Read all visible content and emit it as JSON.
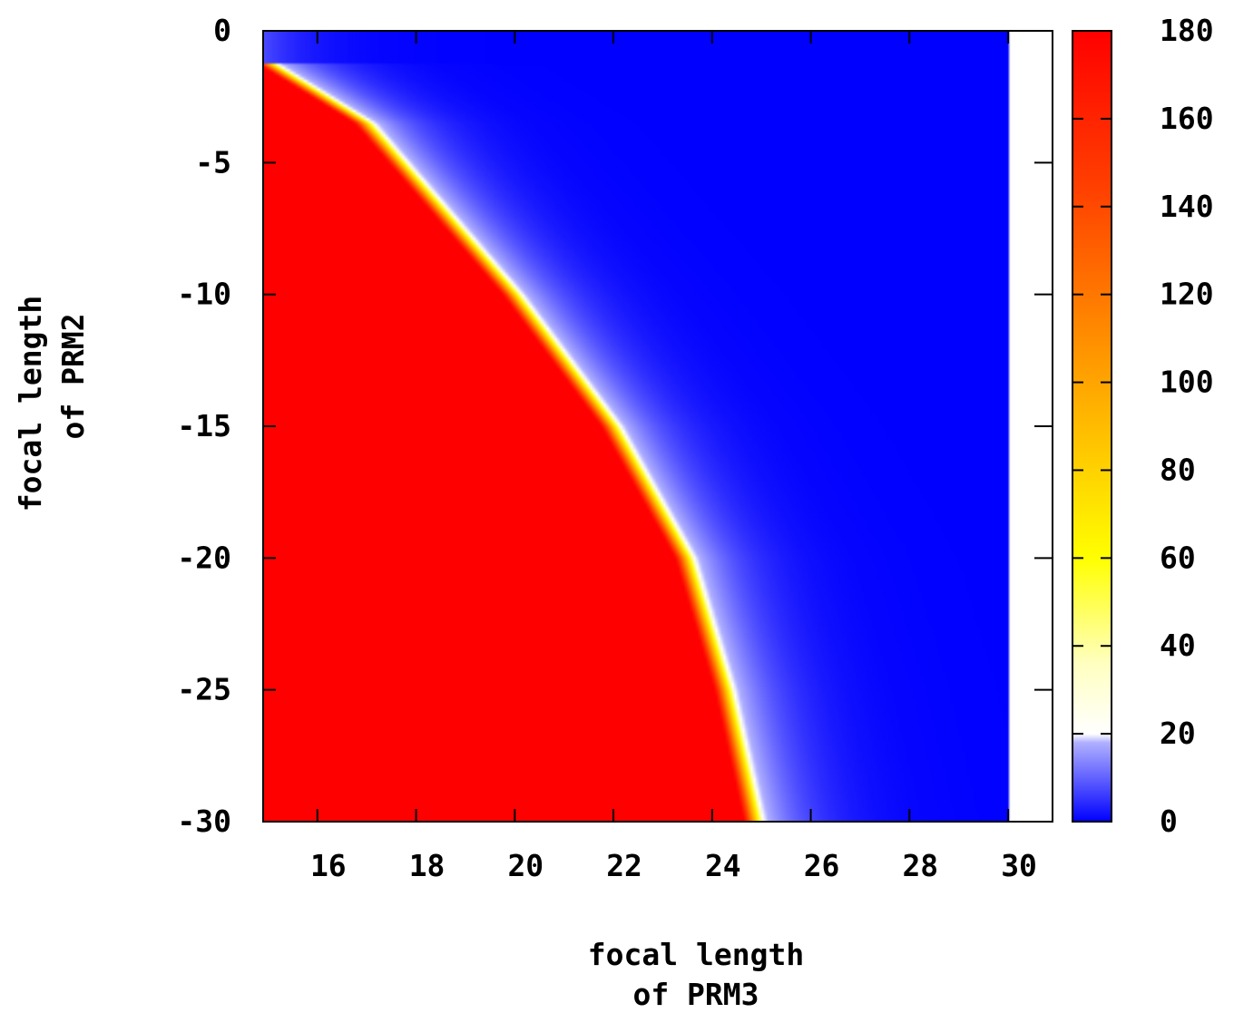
{
  "chart_data": {
    "type": "heatmap",
    "title": "",
    "xlabel": [
      "focal length",
      "of PRM3"
    ],
    "ylabel": [
      "focal length",
      "of PRM2"
    ],
    "xlim": [
      14.9,
      30.9
    ],
    "ylim": [
      -30,
      0
    ],
    "data_x_range": [
      14.9,
      30
    ],
    "xticks": [
      16,
      18,
      20,
      22,
      24,
      26,
      28,
      30
    ],
    "yticks": [
      0,
      -5,
      -10,
      -15,
      -20,
      -25,
      -30
    ],
    "colorbar": {
      "range": [
        0,
        180
      ],
      "ticks": [
        0,
        20,
        40,
        60,
        80,
        100,
        120,
        140,
        160,
        180
      ],
      "colors": {
        "low": "#0000ff",
        "mid": "#ffffff",
        "yellow": "#ffff00",
        "orange": "#ffa500",
        "high": "#ff0000"
      }
    },
    "boundary_curve": {
      "description_points": [
        {
          "x": 15.0,
          "y": -1.2
        },
        {
          "x": 17.0,
          "y": -3.5
        },
        {
          "x": 20.0,
          "y": -10.0
        },
        {
          "x": 22.0,
          "y": -15.0
        },
        {
          "x": 23.5,
          "y": -20.0
        },
        {
          "x": 24.3,
          "y": -25.0
        },
        {
          "x": 24.9,
          "y": -30.0
        }
      ],
      "inside_value": 180,
      "outside_value": 0
    }
  }
}
